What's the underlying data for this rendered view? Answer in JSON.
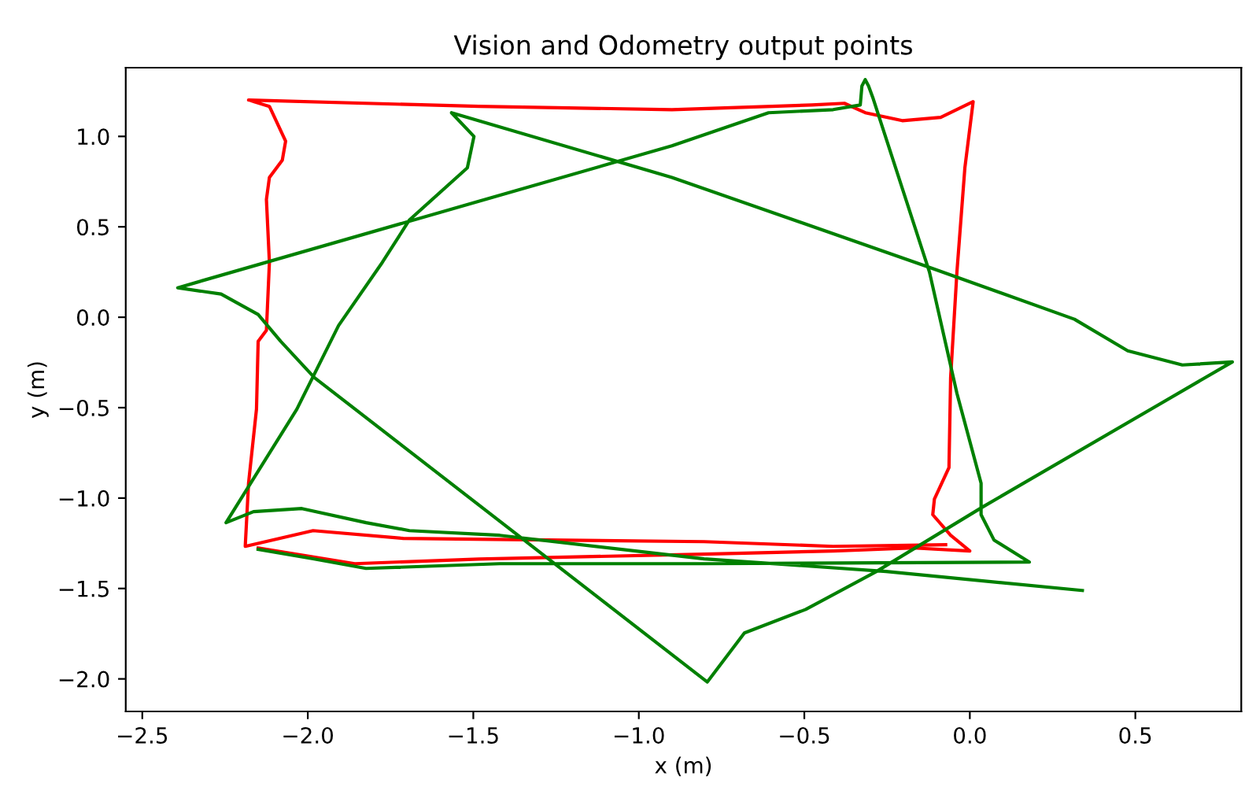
{
  "chart_data": {
    "type": "line",
    "title": "Vision and Odometry output points",
    "xlabel": "x (m)",
    "ylabel": "y (m)",
    "xlim": [
      -2.55,
      0.82
    ],
    "ylim": [
      -2.18,
      1.38
    ],
    "xticks": [
      {
        "value": -2.5,
        "label": "−2.5"
      },
      {
        "value": -2.0,
        "label": "−2.0"
      },
      {
        "value": -1.5,
        "label": "−1.5"
      },
      {
        "value": -1.0,
        "label": "−1.0"
      },
      {
        "value": -0.5,
        "label": "−0.5"
      },
      {
        "value": 0.0,
        "label": "0.0"
      },
      {
        "value": 0.5,
        "label": "0.5"
      }
    ],
    "yticks": [
      {
        "value": -2.0,
        "label": "−2.0"
      },
      {
        "value": -1.5,
        "label": "−1.5"
      },
      {
        "value": -1.0,
        "label": "−1.0"
      },
      {
        "value": -0.5,
        "label": "−0.5"
      },
      {
        "value": 0.0,
        "label": "0.0"
      },
      {
        "value": 0.5,
        "label": "0.5"
      },
      {
        "value": 1.0,
        "label": "1.0"
      }
    ],
    "grid": false,
    "series": [
      {
        "color": "#ff0000",
        "x": [
          -2.15,
          -1.858,
          -1.483,
          -0.803,
          -0.413,
          -0.17,
          0.0,
          -0.058,
          -0.112,
          -0.107,
          -0.063,
          -0.058,
          -0.039,
          -0.015,
          0.01,
          -0.088,
          -0.204,
          -0.316,
          -0.379,
          -0.477,
          -0.9,
          -1.483,
          -2.179,
          -2.116,
          -2.067,
          -2.077,
          -2.116,
          -2.125,
          -2.116,
          -2.125,
          -2.15,
          -2.155,
          -2.179,
          -2.189,
          -1.984,
          -1.712,
          -0.803,
          -0.413,
          -0.073
        ],
        "values": [
          -1.276,
          -1.363,
          -1.337,
          -1.31,
          -1.293,
          -1.276,
          -1.293,
          -1.206,
          -1.092,
          -1.005,
          -0.831,
          -0.334,
          0.25,
          0.826,
          1.192,
          1.105,
          1.087,
          1.131,
          1.183,
          1.174,
          1.148,
          1.166,
          1.201,
          1.166,
          0.974,
          0.869,
          0.773,
          0.651,
          0.303,
          -0.072,
          -0.133,
          -0.508,
          -0.918,
          -1.267,
          -1.18,
          -1.223,
          -1.241,
          -1.267,
          -1.258
        ]
      },
      {
        "color": "#008000",
        "x": [
          -2.15,
          -1.984,
          -1.824,
          -1.42,
          -0.803,
          0.18,
          0.073,
          0.034,
          0.034,
          -0.039,
          -0.122,
          -0.292,
          -0.306,
          -0.316,
          -0.326,
          -0.331,
          -0.413,
          -0.608,
          -0.9,
          -2.393,
          -2.262,
          -2.15,
          -2.082,
          -1.98,
          -0.793,
          -0.681,
          -0.496,
          -0.282,
          0.039,
          0.793,
          0.642,
          0.477,
          0.316,
          -0.122,
          -0.9,
          -1.566,
          -1.498,
          -1.518,
          -1.693,
          -1.775,
          -1.907,
          -2.033,
          -2.247,
          -2.164,
          -2.018,
          -1.824,
          -1.693,
          -1.42,
          -0.803,
          -0.253,
          0.34
        ],
        "values": [
          -1.284,
          -1.336,
          -1.389,
          -1.363,
          -1.363,
          -1.354,
          -1.232,
          -1.092,
          -0.918,
          -0.421,
          0.25,
          1.209,
          1.279,
          1.314,
          1.279,
          1.174,
          1.148,
          1.131,
          0.948,
          0.163,
          0.128,
          0.015,
          -0.133,
          -0.334,
          -2.017,
          -1.746,
          -1.616,
          -1.406,
          -1.049,
          -0.247,
          -0.264,
          -0.186,
          -0.011,
          0.276,
          0.773,
          1.131,
          1.0,
          0.826,
          0.538,
          0.303,
          -0.046,
          -0.508,
          -1.136,
          -1.075,
          -1.058,
          -1.136,
          -1.18,
          -1.206,
          -1.336,
          -1.406,
          -1.511
        ]
      }
    ]
  }
}
